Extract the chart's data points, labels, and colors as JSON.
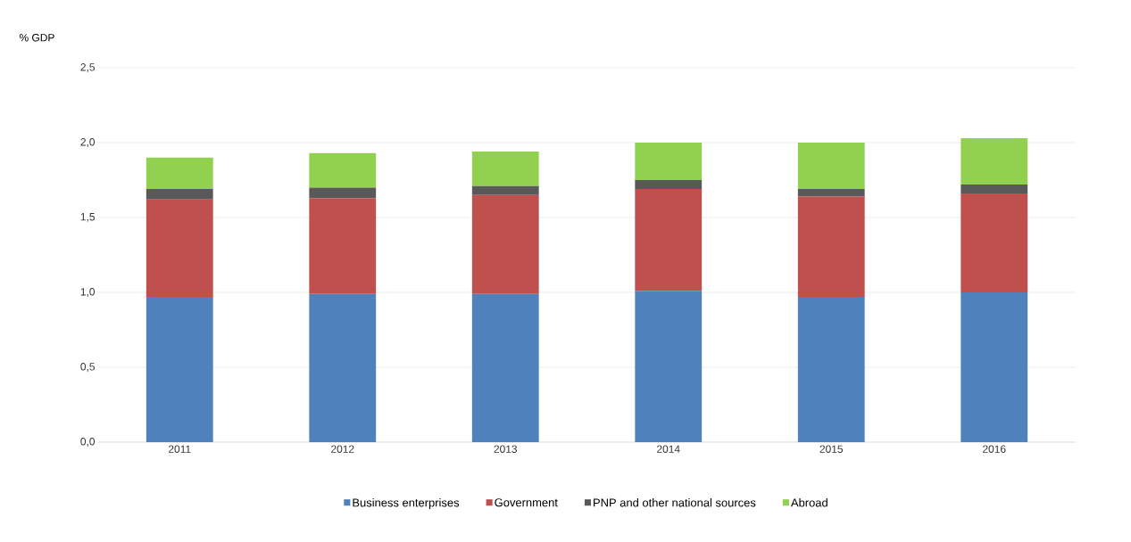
{
  "chart_data": {
    "type": "bar",
    "stacked": true,
    "ylabel": "% GDP",
    "categories": [
      "2011",
      "2012",
      "2013",
      "2014",
      "2015",
      "2016"
    ],
    "series": [
      {
        "name": "Business enterprises",
        "color": "#4f81bd",
        "values": [
          0.97,
          0.99,
          0.99,
          1.01,
          0.97,
          1.0
        ]
      },
      {
        "name": "Government",
        "color": "#c0504d",
        "values": [
          0.65,
          0.64,
          0.66,
          0.68,
          0.67,
          0.66
        ]
      },
      {
        "name": "PNP and other national sources",
        "color": "#595959",
        "values": [
          0.07,
          0.07,
          0.06,
          0.06,
          0.05,
          0.06
        ]
      },
      {
        "name": "Abroad",
        "color": "#92d050",
        "values": [
          0.21,
          0.23,
          0.23,
          0.25,
          0.31,
          0.31
        ]
      }
    ],
    "ylim": [
      0,
      2.5
    ],
    "yticks": [
      {
        "value": 0,
        "label": "0,0"
      },
      {
        "value": 0.5,
        "label": "0,5"
      },
      {
        "value": 1,
        "label": "1,0"
      },
      {
        "value": 1.5,
        "label": "1,5"
      },
      {
        "value": 2,
        "label": "2,0"
      },
      {
        "value": 2.5,
        "label": "2,5"
      }
    ],
    "grid": "y",
    "legend": "bottom"
  }
}
